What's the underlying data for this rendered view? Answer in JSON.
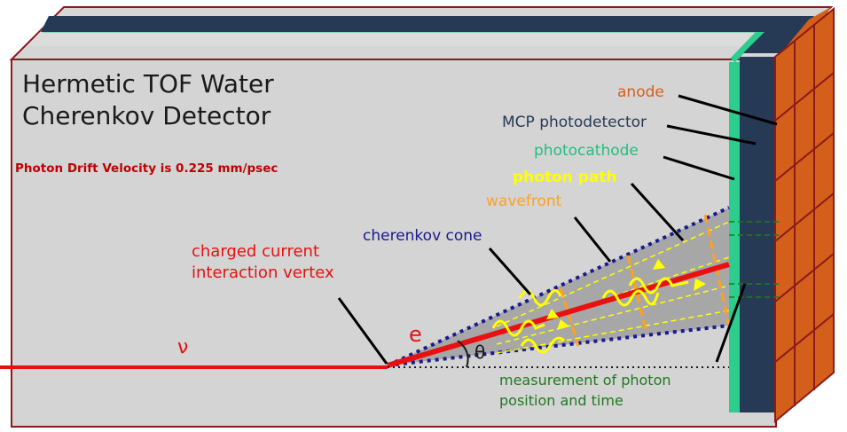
{
  "title": {
    "line1": "Hermetic TOF Water",
    "line2": "Cherenkov Detector"
  },
  "note": "Photon Drift Velocity is 0.225 mm/psec",
  "labels": {
    "anode": "anode",
    "mcp": "MCP photodetector",
    "photocathode": "photocathode",
    "photon_path": "photon path",
    "wavefront": "wavefront",
    "cherenkov_cone": "cherenkov cone",
    "vertex_line1": "charged current",
    "vertex_line2": "interaction vertex",
    "neutrino": "ν",
    "electron": "e",
    "theta": "θ",
    "measurement_line1": "measurement of photon",
    "measurement_line2": "position and time"
  },
  "colors": {
    "tank_front": "#d4d4d4",
    "tank_top": "#d6d6d6",
    "tank_top_inner": "#dcdcdc",
    "edge": "#8b1a1a",
    "photocathode": "#2ecc8f",
    "mcp": "#263a55",
    "anode": "#d35f1a",
    "track": "#e81010",
    "cone": "#1a1a8c",
    "cone_fill": "#a7a7a7",
    "photon": "#ffff00",
    "wavefront": "#ffa020",
    "measurement": "#1e7a1e",
    "note": "#c00000",
    "mcp_label": "#263a55",
    "anode_label": "#d35f1a",
    "photocathode_label": "#20c080",
    "cone_label": "#1a1a8c"
  }
}
